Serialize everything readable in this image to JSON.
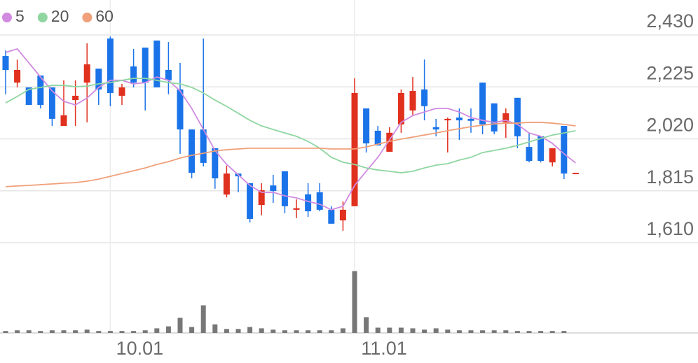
{
  "chart_data": {
    "type": "candlestick",
    "categories": [
      null,
      null,
      null,
      null,
      null,
      null,
      null,
      null,
      null,
      "10.01",
      null,
      null,
      null,
      null,
      null,
      null,
      null,
      null,
      null,
      null,
      null,
      null,
      null,
      null,
      null,
      null,
      null,
      null,
      null,
      null,
      "11.01",
      null,
      null,
      null,
      null,
      null,
      null,
      null,
      null,
      null,
      null,
      null,
      null,
      null,
      null,
      null,
      null,
      null,
      null,
      null
    ],
    "open": [
      2347,
      2242,
      2223,
      2270,
      2223,
      2071,
      2173,
      2242,
      2297,
      2416,
      2190,
      2306,
      2380,
      2408,
      2292,
      2215,
      2057,
      2057,
      1983,
      1800,
      1883,
      1845,
      1759,
      1836,
      1892,
      1740,
      1801,
      1809,
      1740,
      1698,
      1754,
      2140,
      2052,
      1969,
      2077,
      2132,
      2215,
      2066,
      2093,
      2104,
      2099,
      2242,
      2160,
      2085,
      2182,
      1988,
      2030,
      1927,
      2071,
      1886
    ],
    "high": [
      2369,
      2333,
      2223,
      2270,
      2223,
      2251,
      2251,
      2397,
      2297,
      2424,
      2237,
      2375,
      2380,
      2408,
      2402,
      2320,
      2057,
      2416,
      1983,
      1914,
      1883,
      1845,
      1845,
      1878,
      1892,
      1781,
      1845,
      1845,
      1754,
      1773,
      2259,
      2140,
      2071,
      2066,
      2215,
      2264,
      2333,
      2099,
      2104,
      2140,
      2140,
      2242,
      2160,
      2140,
      2182,
      2044,
      2030,
      1983,
      2071,
      1886
    ],
    "low": [
      2196,
      2223,
      2154,
      2140,
      2071,
      2071,
      2071,
      2085,
      2154,
      2149,
      2154,
      2223,
      2132,
      2223,
      2196,
      1961,
      1864,
      1911,
      1823,
      1789,
      1809,
      1690,
      1718,
      1767,
      1726,
      1707,
      1712,
      1734,
      1685,
      1657,
      1754,
      1966,
      1994,
      1969,
      2044,
      2113,
      2093,
      2030,
      1966,
      2016,
      2044,
      2038,
      2038,
      2024,
      1983,
      1927,
      1927,
      1911,
      1861,
      1886
    ],
    "close": [
      2292,
      2292,
      2154,
      2154,
      2099,
      2113,
      2190,
      2314,
      2215,
      2201,
      2223,
      2242,
      2242,
      2223,
      2251,
      2057,
      1886,
      1925,
      1864,
      1883,
      1872,
      1704,
      1817,
      1814,
      1754,
      1746,
      1734,
      1740,
      1685,
      1740,
      2201,
      2002,
      1994,
      2044,
      2201,
      2209,
      2149,
      2057,
      2099,
      2093,
      2091,
      2077,
      2049,
      2121,
      2030,
      1933,
      1933,
      1983,
      1883,
      1886
    ],
    "volume": [
      3,
      4,
      4,
      3,
      4,
      4,
      4,
      5,
      3,
      3,
      3,
      3,
      4,
      7,
      10,
      23,
      9,
      42,
      13,
      6,
      6,
      9,
      7,
      5,
      4,
      4,
      4,
      4,
      4,
      7,
      94,
      24,
      8,
      8,
      8,
      7,
      5,
      7,
      5,
      4,
      4,
      4,
      4,
      4,
      3,
      3,
      3,
      3,
      3,
      0
    ],
    "volume_ylim": [
      0,
      100
    ],
    "up_color": "#e0301e",
    "down_color": "#1a73e8",
    "volume_color": "#777777",
    "series": [
      {
        "name": "5",
        "color": "#d08be0",
        "values": [
          2361,
          2375,
          2320,
          2264,
          2209,
          2168,
          2154,
          2181,
          2223,
          2251,
          2251,
          2237,
          2242,
          2264,
          2251,
          2209,
          2140,
          2057,
          1974,
          1919,
          1878,
          1836,
          1809,
          1809,
          1795,
          1787,
          1773,
          1762,
          1740,
          1754,
          1836,
          1892,
          1947,
          2016,
          2085,
          2112,
          2126,
          2140,
          2140,
          2126,
          2104,
          2093,
          2085,
          2093,
          2077,
          2043,
          2030,
          2002,
          1961,
          1925
        ]
      },
      {
        "name": "20",
        "color": "#8fd6a0",
        "values": [
          2162,
          2187,
          2215,
          2223,
          2231,
          2231,
          2226,
          2228,
          2237,
          2242,
          2251,
          2259,
          2259,
          2251,
          2242,
          2237,
          2223,
          2201,
          2173,
          2148,
          2121,
          2093,
          2071,
          2057,
          2043,
          2030,
          2010,
          1983,
          1947,
          1928,
          1919,
          1905,
          1897,
          1892,
          1886,
          1892,
          1905,
          1916,
          1922,
          1936,
          1947,
          1966,
          1974,
          1983,
          1994,
          2008,
          2021,
          2035,
          2043,
          2052
        ]
      },
      {
        "name": "60",
        "color": "#f0a07a",
        "values": [
          1831,
          1834,
          1836,
          1839,
          1842,
          1845,
          1847,
          1853,
          1861,
          1872,
          1883,
          1894,
          1905,
          1919,
          1930,
          1944,
          1955,
          1963,
          1972,
          1977,
          1980,
          1983,
          1983,
          1983,
          1983,
          1983,
          1983,
          1983,
          1980,
          1980,
          1980,
          1988,
          1999,
          2010,
          2019,
          2027,
          2035,
          2043,
          2052,
          2060,
          2068,
          2074,
          2079,
          2082,
          2082,
          2085,
          2085,
          2082,
          2077,
          2071
        ]
      }
    ],
    "ylim": [
      1610,
      2430
    ],
    "yticks": [
      {
        "value": 1610,
        "label": "1,610"
      },
      {
        "value": 1815,
        "label": "1,815"
      },
      {
        "value": 2020,
        "label": "2,020"
      },
      {
        "value": 2225,
        "label": "2,225"
      },
      {
        "value": 2430,
        "label": "2,430"
      }
    ],
    "grid": true
  }
}
